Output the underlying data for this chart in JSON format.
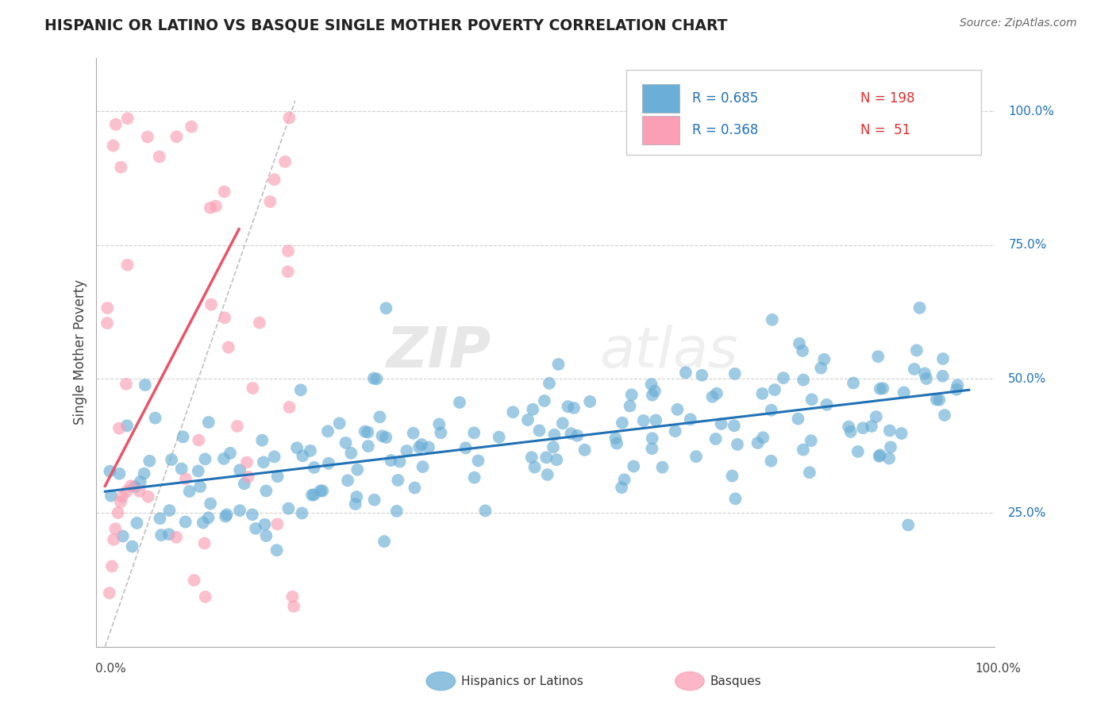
{
  "title": "HISPANIC OR LATINO VS BASQUE SINGLE MOTHER POVERTY CORRELATION CHART",
  "source": "Source: ZipAtlas.com",
  "ylabel": "Single Mother Poverty",
  "legend_label1": "Hispanics or Latinos",
  "legend_label2": "Basques",
  "R1": 0.685,
  "N1": 198,
  "R2": 0.368,
  "N2": 51,
  "color_blue": "#6baed6",
  "color_pink": "#fa9fb5",
  "color_blue_line": "#2171b5",
  "color_pink_line": "#e8546a",
  "color_dashed": "#bbbbbb",
  "watermark_zip": "ZIP",
  "watermark_atlas": "atlas",
  "y_ticks": [
    0.25,
    0.5,
    0.75,
    1.0
  ],
  "y_tick_labels": [
    "25.0%",
    "50.0%",
    "75.0%",
    "100.0%"
  ]
}
